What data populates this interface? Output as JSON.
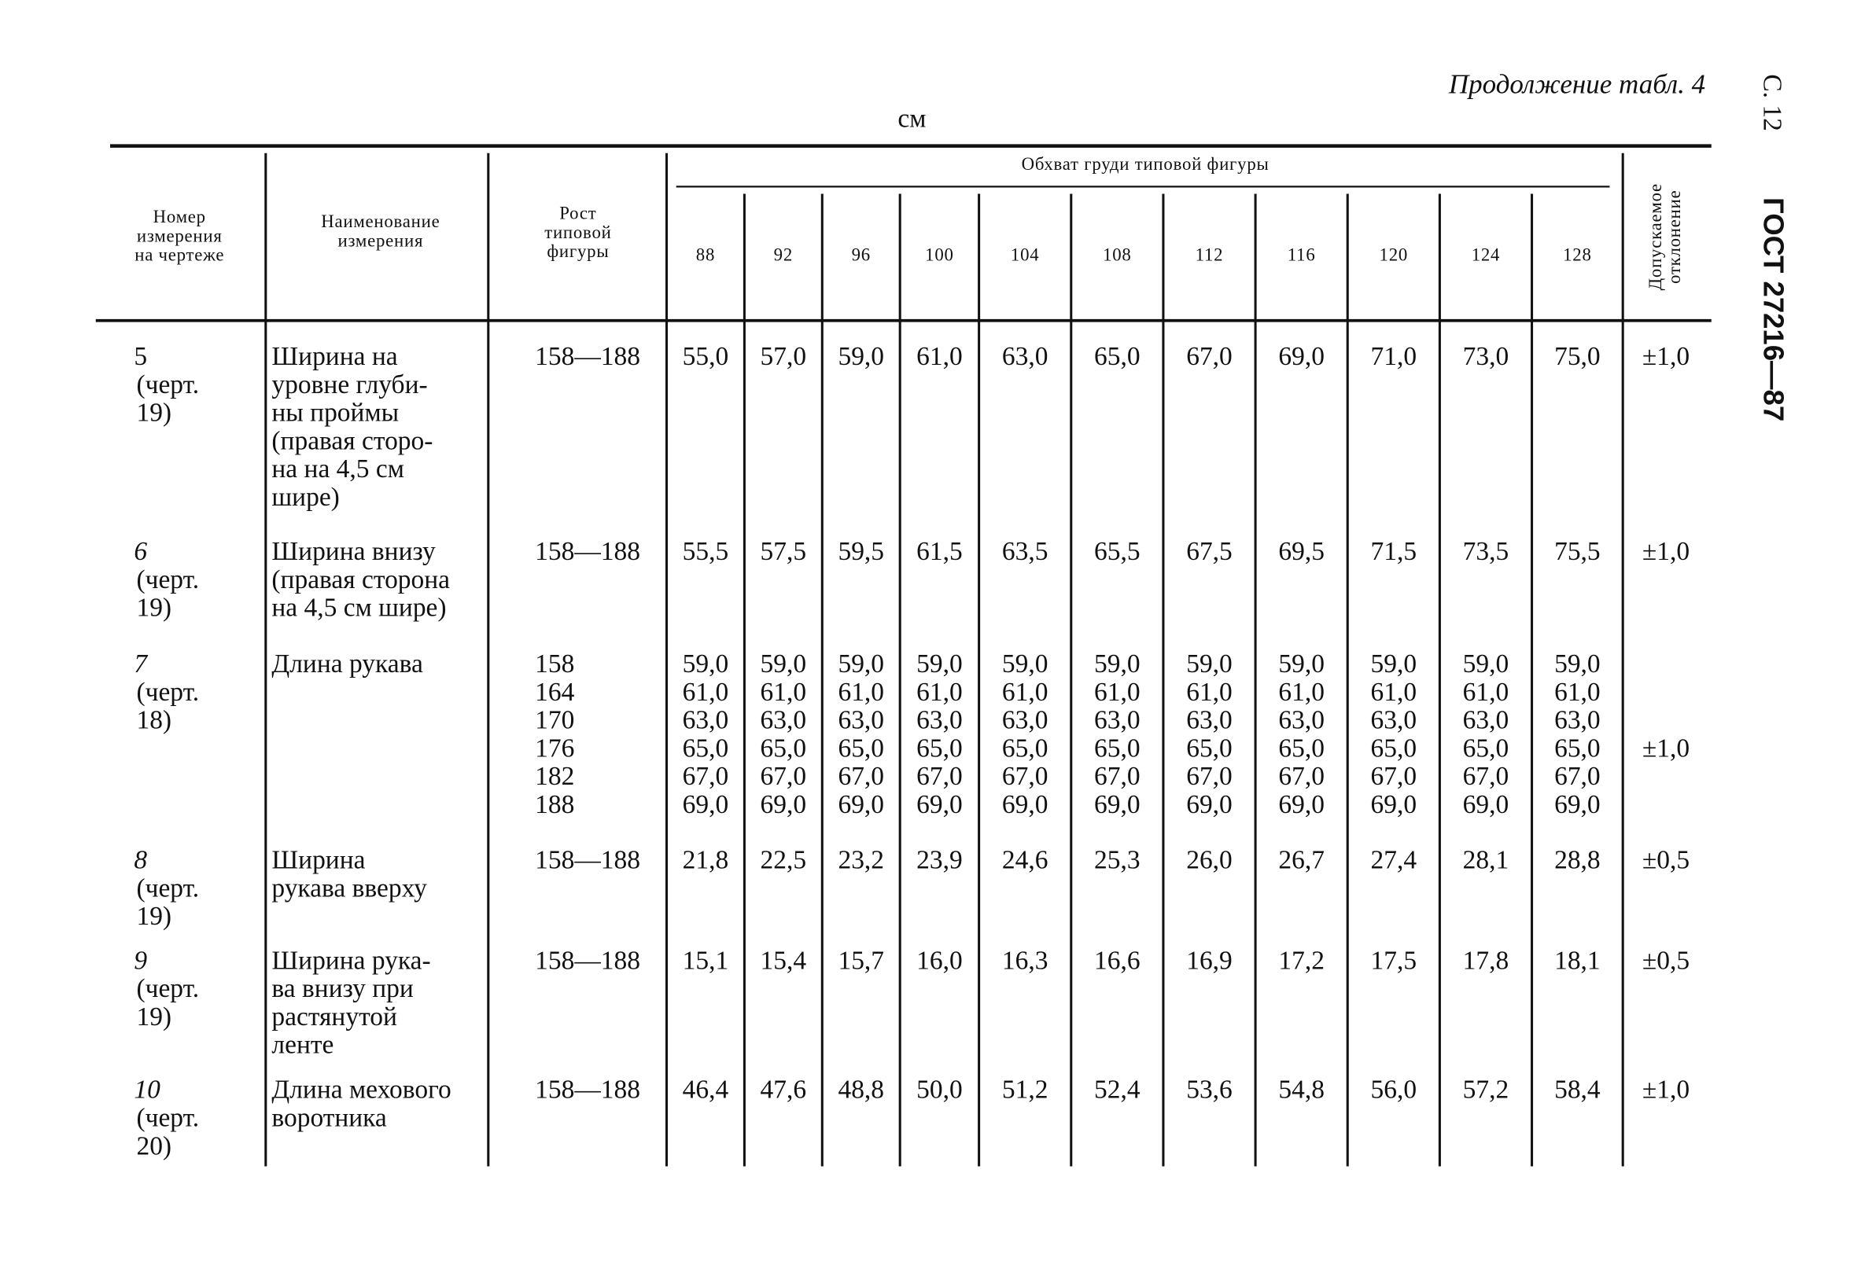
{
  "header": {
    "continuation": "Продолжение табл. 4",
    "unit": "см",
    "page": "С. 12",
    "standard": "ГОСТ 27216—87"
  },
  "table": {
    "columns": {
      "number": [
        "Номер",
        "измерения",
        "на чертеже"
      ],
      "name": [
        "Наименование",
        "измерения"
      ],
      "height": [
        "Рост",
        "типовой",
        "фигуры"
      ],
      "girth": "Обхват груди типовой фигуры",
      "sizes": [
        "88",
        "92",
        "96",
        "100",
        "104",
        "108",
        "112",
        "116",
        "120",
        "124",
        "128"
      ],
      "tolerance": [
        "Допускаемое",
        "отклонение"
      ]
    },
    "rows": [
      {
        "number": [
          "5",
          "(черт.",
          "19)"
        ],
        "name": [
          "Ширина на",
          "уровне глуби-",
          "ны проймы",
          "(правая сторо-",
          "на на 4,5 см",
          "шире)"
        ],
        "height": [
          "158—188"
        ],
        "values": [
          [
            "55,0",
            "57,0",
            "59,0",
            "61,0",
            "63,0",
            "65,0",
            "67,0",
            "69,0",
            "71,0",
            "73,0",
            "75,0"
          ]
        ],
        "tolerance": "±1,0"
      },
      {
        "number": [
          "6",
          "(черт.",
          "19)"
        ],
        "name": [
          "Ширина внизу",
          "(правая сторона",
          "на 4,5 см шире)"
        ],
        "height": [
          "158—188"
        ],
        "values": [
          [
            "55,5",
            "57,5",
            "59,5",
            "61,5",
            "63,5",
            "65,5",
            "67,5",
            "69,5",
            "71,5",
            "73,5",
            "75,5"
          ]
        ],
        "tolerance": "±1,0"
      },
      {
        "number": [
          "7",
          "(черт.",
          "18)"
        ],
        "name": [
          "Длина рукава"
        ],
        "height": [
          "158",
          "164",
          "170",
          "176",
          "182",
          "188"
        ],
        "values": [
          [
            "59,0",
            "59,0",
            "59,0",
            "59,0",
            "59,0",
            "59,0",
            "59,0",
            "59,0",
            "59,0",
            "59,0",
            "59,0"
          ],
          [
            "61,0",
            "61,0",
            "61,0",
            "61,0",
            "61,0",
            "61,0",
            "61,0",
            "61,0",
            "61,0",
            "61,0",
            "61,0"
          ],
          [
            "63,0",
            "63,0",
            "63,0",
            "63,0",
            "63,0",
            "63,0",
            "63,0",
            "63,0",
            "63,0",
            "63,0",
            "63,0"
          ],
          [
            "65,0",
            "65,0",
            "65,0",
            "65,0",
            "65,0",
            "65,0",
            "65,0",
            "65,0",
            "65,0",
            "65,0",
            "65,0"
          ],
          [
            "67,0",
            "67,0",
            "67,0",
            "67,0",
            "67,0",
            "67,0",
            "67,0",
            "67,0",
            "67,0",
            "67,0",
            "67,0"
          ],
          [
            "69,0",
            "69,0",
            "69,0",
            "69,0",
            "69,0",
            "69,0",
            "69,0",
            "69,0",
            "69,0",
            "69,0",
            "69,0"
          ]
        ],
        "tolerance": "±1,0"
      },
      {
        "number": [
          "8",
          "(черт.",
          "19)"
        ],
        "name": [
          "Ширина",
          "рукава вверху"
        ],
        "height": [
          "158—188"
        ],
        "values": [
          [
            "21,8",
            "22,5",
            "23,2",
            "23,9",
            "24,6",
            "25,3",
            "26,0",
            "26,7",
            "27,4",
            "28,1",
            "28,8"
          ]
        ],
        "tolerance": "±0,5"
      },
      {
        "number": [
          "9",
          "(черт.",
          "19)"
        ],
        "name": [
          "Ширина рука-",
          "ва внизу при",
          "растянутой",
          "ленте"
        ],
        "height": [
          "158—188"
        ],
        "values": [
          [
            "15,1",
            "15,4",
            "15,7",
            "16,0",
            "16,3",
            "16,6",
            "16,9",
            "17,2",
            "17,5",
            "17,8",
            "18,1"
          ]
        ],
        "tolerance": "±0,5"
      },
      {
        "number": [
          "10",
          "(черт.",
          "20)"
        ],
        "name": [
          "Длина мехового",
          "воротника"
        ],
        "height": [
          "158—188"
        ],
        "values": [
          [
            "46,4",
            "47,6",
            "48,8",
            "50,0",
            "51,2",
            "52,4",
            "53,6",
            "54,8",
            "56,0",
            "57,2",
            "58,4"
          ]
        ],
        "tolerance": "±1,0"
      }
    ]
  }
}
